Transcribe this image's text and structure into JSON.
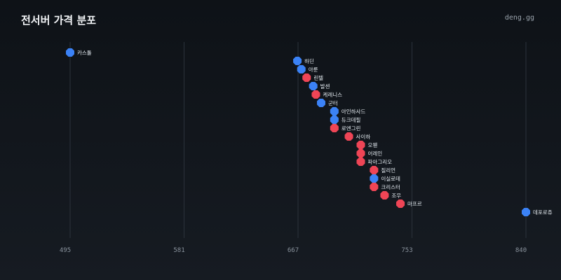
{
  "header": {
    "title": "전서버 가격 분포",
    "brand": "deng.gg"
  },
  "colors": {
    "blue": "#3b82f6",
    "red": "#ef4556",
    "grid": "#2b323b"
  },
  "chart_data": {
    "type": "scatter",
    "title": "전서버 가격 분포",
    "xlabel": "",
    "ylabel": "",
    "xlim": [
      495,
      840
    ],
    "xticks": [
      "495",
      "581",
      "667",
      "753",
      "840"
    ],
    "grid": true,
    "points": [
      {
        "label": "카스툴",
        "x": 495,
        "color": "blue"
      },
      {
        "label": "하딘",
        "x": 667,
        "color": "blue"
      },
      {
        "label": "아룬",
        "x": 670,
        "color": "blue"
      },
      {
        "label": "린텔",
        "x": 674,
        "color": "red"
      },
      {
        "label": "발센",
        "x": 679,
        "color": "blue"
      },
      {
        "label": "케레니스",
        "x": 681,
        "color": "red"
      },
      {
        "label": "군터",
        "x": 685,
        "color": "blue"
      },
      {
        "label": "아인하사드",
        "x": 695,
        "color": "blue"
      },
      {
        "label": "듀크데필",
        "x": 695,
        "color": "blue"
      },
      {
        "label": "로엔그린",
        "x": 695,
        "color": "red"
      },
      {
        "label": "사이하",
        "x": 706,
        "color": "red"
      },
      {
        "label": "오웬",
        "x": 715,
        "color": "red"
      },
      {
        "label": "어레인",
        "x": 715,
        "color": "red"
      },
      {
        "label": "파아그리오",
        "x": 715,
        "color": "red"
      },
      {
        "label": "질리언",
        "x": 725,
        "color": "red"
      },
      {
        "label": "이실로테",
        "x": 725,
        "color": "blue"
      },
      {
        "label": "크리스터",
        "x": 725,
        "color": "red"
      },
      {
        "label": "조우",
        "x": 733,
        "color": "red"
      },
      {
        "label": "마프르",
        "x": 745,
        "color": "red"
      },
      {
        "label": "데포로쥬",
        "x": 840,
        "color": "blue"
      }
    ]
  }
}
